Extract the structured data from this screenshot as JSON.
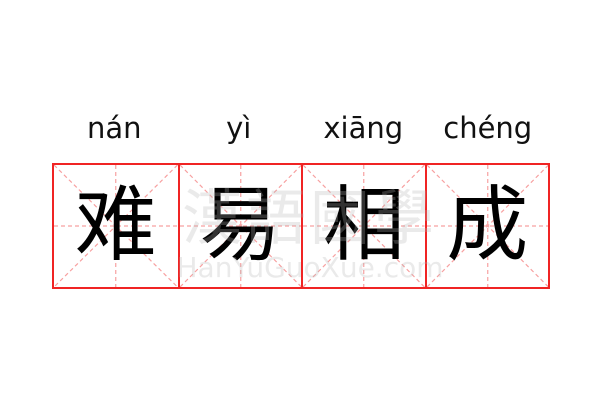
{
  "idiom": {
    "characters": [
      {
        "hanzi": "难",
        "pinyin": "nán"
      },
      {
        "hanzi": "易",
        "pinyin": "yì"
      },
      {
        "hanzi": "相",
        "pinyin": "xiāng"
      },
      {
        "hanzi": "成",
        "pinyin": "chéng"
      }
    ]
  },
  "watermark": {
    "text": "漢語國學",
    "url": "HanYuGuoXue.com"
  },
  "colors": {
    "grid_border": "#f02424",
    "guide_lines": "#f7a0a0",
    "text": "#000000"
  }
}
